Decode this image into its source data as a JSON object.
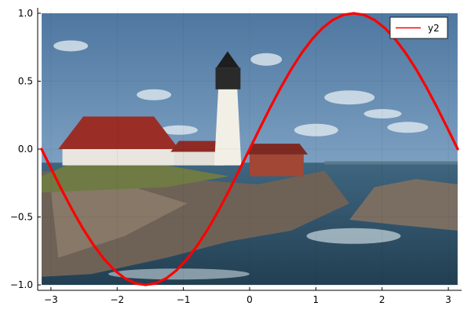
{
  "chart_data": {
    "type": "line",
    "title": "",
    "xlabel": "",
    "ylabel": "",
    "xlim": [
      -3.2,
      3.2
    ],
    "ylim": [
      -1.04,
      1.04
    ],
    "xticks": [
      -3,
      -2,
      -1,
      0,
      1,
      2,
      3
    ],
    "xtick_labels": [
      "−3",
      "−2",
      "−1",
      "0",
      "1",
      "2",
      "3"
    ],
    "yticks": [
      -1.0,
      -0.5,
      0.0,
      0.5,
      1.0
    ],
    "ytick_labels": [
      "−1.0",
      "−0.5",
      "0.0",
      "0.5",
      "1.0"
    ],
    "grid": true,
    "legend": {
      "position": "top-right"
    },
    "background_image": {
      "subject": "lighthouse-on-rocky-coast-photo",
      "x_extent": [
        -3.14,
        3.14
      ],
      "y_extent": [
        -1.0,
        1.0
      ]
    },
    "series": [
      {
        "name": "y2",
        "color": "#ff0000",
        "x": [
          -3.1416,
          -2.9845,
          -2.8274,
          -2.6704,
          -2.5133,
          -2.3562,
          -2.1991,
          -2.042,
          -1.885,
          -1.7279,
          -1.5708,
          -1.4137,
          -1.2566,
          -1.0996,
          -0.9425,
          -0.7854,
          -0.6283,
          -0.4712,
          -0.3142,
          -0.1571,
          0.0,
          0.1571,
          0.3142,
          0.4712,
          0.6283,
          0.7854,
          0.9425,
          1.0996,
          1.2566,
          1.4137,
          1.5708,
          1.7279,
          1.885,
          2.042,
          2.1991,
          2.3562,
          2.5133,
          2.6704,
          2.8274,
          2.9845,
          3.1416
        ],
        "y": [
          0.0,
          -0.156,
          -0.309,
          -0.454,
          -0.588,
          -0.707,
          -0.809,
          -0.891,
          -0.951,
          -0.988,
          -1.0,
          -0.988,
          -0.951,
          -0.891,
          -0.809,
          -0.707,
          -0.588,
          -0.454,
          -0.309,
          -0.156,
          0.0,
          0.156,
          0.309,
          0.454,
          0.588,
          0.707,
          0.809,
          0.891,
          0.951,
          0.988,
          1.0,
          0.988,
          0.951,
          0.891,
          0.809,
          0.707,
          0.588,
          0.454,
          0.309,
          0.156,
          0.0
        ]
      }
    ]
  }
}
